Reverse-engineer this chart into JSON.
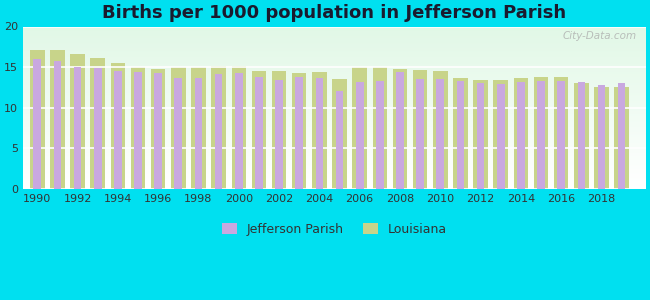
{
  "title": "Births per 1000 population in Jefferson Parish",
  "background_color": "#00e0f0",
  "years": [
    1990,
    1991,
    1992,
    1993,
    1994,
    1995,
    1996,
    1997,
    1998,
    1999,
    2000,
    2001,
    2002,
    2003,
    2004,
    2005,
    2006,
    2007,
    2008,
    2009,
    2010,
    2011,
    2012,
    2013,
    2014,
    2015,
    2016,
    2017,
    2018,
    2019
  ],
  "jefferson": [
    16.0,
    15.8,
    15.0,
    14.9,
    14.5,
    14.4,
    14.3,
    13.7,
    13.7,
    14.2,
    14.3,
    13.8,
    13.4,
    13.8,
    13.7,
    12.0,
    13.2,
    13.3,
    14.4,
    13.5,
    13.5,
    13.3,
    13.0,
    12.9,
    13.2,
    13.3,
    13.3,
    13.2,
    12.8,
    13.1
  ],
  "louisiana": [
    17.1,
    17.1,
    16.6,
    16.1,
    15.5,
    15.0,
    14.8,
    15.0,
    15.0,
    15.1,
    15.1,
    14.5,
    14.5,
    14.3,
    14.4,
    13.5,
    15.0,
    15.0,
    14.8,
    14.6,
    14.5,
    13.7,
    13.4,
    13.4,
    13.7,
    13.8,
    13.8,
    13.0,
    12.6,
    12.5
  ],
  "jefferson_color": "#c9a8e0",
  "louisiana_color": "#c8d48a",
  "ylim": [
    0,
    20
  ],
  "yticks": [
    0,
    5,
    10,
    15,
    20
  ],
  "xtick_years": [
    1990,
    1992,
    1994,
    1996,
    1998,
    2000,
    2002,
    2004,
    2006,
    2008,
    2010,
    2012,
    2014,
    2016,
    2018
  ],
  "title_fontsize": 13,
  "tick_fontsize": 8,
  "legend_fontsize": 9,
  "watermark": "City-Data.com"
}
